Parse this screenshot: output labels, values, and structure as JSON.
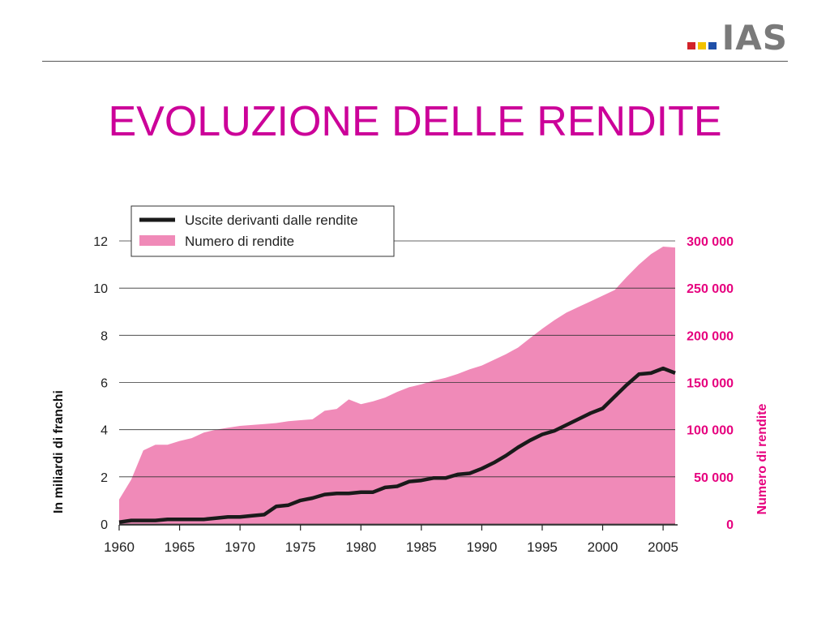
{
  "logo": {
    "text": "IAS",
    "squares": [
      "#d2232a",
      "#f2c200",
      "#1f4fa8"
    ]
  },
  "page_title": "EVOLUZIONE DELLE RENDITE",
  "colors": {
    "title": "#cc0099",
    "area": "#f08ab8",
    "line": "#1a1a1a",
    "right_axis": "#e6007e",
    "grid": "#333333"
  },
  "chart_data": {
    "type": "area",
    "title": "",
    "xlabel": "",
    "ylabel": "In miliardi di franchi",
    "y2label": "Numero di rendite",
    "xlim": [
      1960,
      2006
    ],
    "ylim": [
      0,
      12
    ],
    "y2lim": [
      0,
      300000
    ],
    "x_ticks": [
      "1960",
      "1965",
      "1970",
      "1975",
      "1980",
      "1985",
      "1990",
      "1995",
      "2000",
      "2005"
    ],
    "y_ticks": [
      "0",
      "2",
      "4",
      "6",
      "8",
      "10",
      "12"
    ],
    "y2_ticks": [
      "0",
      "50 000",
      "100 000",
      "150 000",
      "200 000",
      "250 000",
      "300 000"
    ],
    "grid": "horizontal",
    "legend_position": "top-left",
    "series": [
      {
        "name": "Numero di rendite",
        "type": "area",
        "axis": "right",
        "x": [
          1960,
          1961,
          1962,
          1963,
          1964,
          1965,
          1966,
          1967,
          1968,
          1969,
          1970,
          1971,
          1972,
          1973,
          1974,
          1975,
          1976,
          1977,
          1978,
          1979,
          1980,
          1981,
          1982,
          1983,
          1984,
          1985,
          1986,
          1987,
          1988,
          1989,
          1990,
          1991,
          1992,
          1993,
          1994,
          1995,
          1996,
          1997,
          1998,
          1999,
          2000,
          2001,
          2002,
          2003,
          2004,
          2005,
          2006
        ],
        "values": [
          26000,
          47000,
          78000,
          84000,
          84000,
          88000,
          91000,
          97000,
          100000,
          102000,
          104000,
          105000,
          106000,
          107000,
          109000,
          110000,
          111000,
          120000,
          122000,
          132000,
          127000,
          130000,
          134000,
          140000,
          145000,
          148000,
          152000,
          155000,
          159000,
          164000,
          168000,
          174000,
          180000,
          187000,
          197000,
          207000,
          216000,
          224000,
          230000,
          236000,
          242000,
          248000,
          262000,
          275000,
          286000,
          294000,
          293000
        ]
      },
      {
        "name": "Uscite derivanti dalle rendite",
        "type": "line",
        "axis": "left",
        "x": [
          1960,
          1961,
          1962,
          1963,
          1964,
          1965,
          1966,
          1967,
          1968,
          1969,
          1970,
          1971,
          1972,
          1973,
          1974,
          1975,
          1976,
          1977,
          1978,
          1979,
          1980,
          1981,
          1982,
          1983,
          1984,
          1985,
          1986,
          1987,
          1988,
          1989,
          1990,
          1991,
          1992,
          1993,
          1994,
          1995,
          1996,
          1997,
          1998,
          1999,
          2000,
          2001,
          2002,
          2003,
          2004,
          2005,
          2006
        ],
        "values": [
          0.08,
          0.15,
          0.15,
          0.15,
          0.2,
          0.2,
          0.2,
          0.2,
          0.25,
          0.3,
          0.3,
          0.35,
          0.4,
          0.75,
          0.8,
          1.0,
          1.1,
          1.25,
          1.3,
          1.3,
          1.35,
          1.35,
          1.55,
          1.6,
          1.8,
          1.85,
          1.95,
          1.95,
          2.1,
          2.15,
          2.35,
          2.6,
          2.9,
          3.25,
          3.55,
          3.8,
          3.95,
          4.2,
          4.45,
          4.7,
          4.9,
          5.4,
          5.9,
          6.35,
          6.4,
          6.6,
          6.4
        ]
      }
    ]
  }
}
